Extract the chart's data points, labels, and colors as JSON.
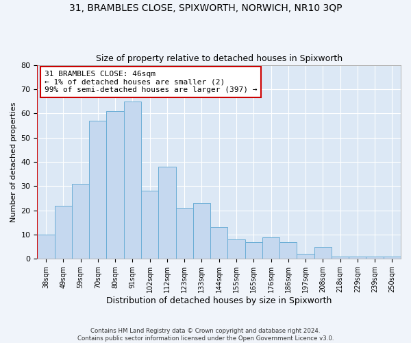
{
  "title1": "31, BRAMBLES CLOSE, SPIXWORTH, NORWICH, NR10 3QP",
  "title2": "Size of property relative to detached houses in Spixworth",
  "xlabel": "Distribution of detached houses by size in Spixworth",
  "ylabel": "Number of detached properties",
  "footnote1": "Contains HM Land Registry data © Crown copyright and database right 2024.",
  "footnote2": "Contains public sector information licensed under the Open Government Licence v3.0.",
  "categories": [
    "38sqm",
    "49sqm",
    "59sqm",
    "70sqm",
    "80sqm",
    "91sqm",
    "102sqm",
    "112sqm",
    "123sqm",
    "133sqm",
    "144sqm",
    "155sqm",
    "165sqm",
    "176sqm",
    "186sqm",
    "197sqm",
    "208sqm",
    "218sqm",
    "229sqm",
    "239sqm",
    "250sqm"
  ],
  "bar_values": [
    10,
    22,
    31,
    57,
    61,
    65,
    28,
    38,
    21,
    23,
    13,
    8,
    7,
    9,
    7,
    2,
    5,
    1,
    1,
    1,
    1
  ],
  "bar_color": "#c5d8ef",
  "bar_edge_color": "#6baed6",
  "marker_color": "#cc0000",
  "annotation_text": "31 BRAMBLES CLOSE: 46sqm\n← 1% of detached houses are smaller (2)\n99% of semi-detached houses are larger (397) →",
  "annotation_box_color": "#ffffff",
  "annotation_box_edge": "#cc0000",
  "ylim": [
    0,
    80
  ],
  "yticks": [
    0,
    10,
    20,
    30,
    40,
    50,
    60,
    70,
    80
  ],
  "fig_bg_color": "#f0f4fa",
  "plot_bg_color": "#dce8f5",
  "title_fontsize": 10,
  "subtitle_fontsize": 9
}
